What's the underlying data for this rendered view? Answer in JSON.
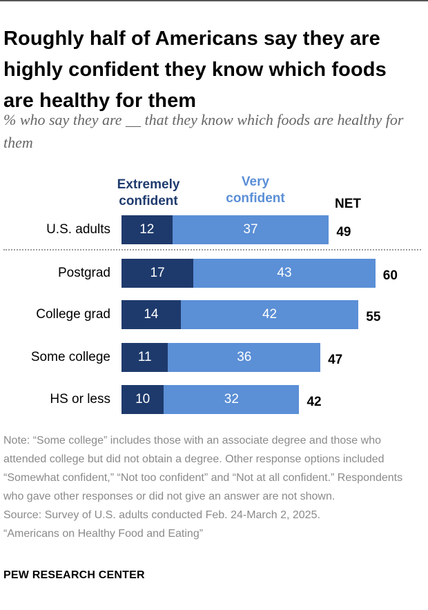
{
  "header": {
    "title": "Roughly half of Americans say they are highly confident they know which foods are healthy for them",
    "subtitle": "% who say they are __ that they know which foods are healthy for them"
  },
  "chart_data": {
    "type": "bar",
    "orientation": "horizontal",
    "stacked": true,
    "categories": [
      "U.S. adults",
      "Postgrad",
      "College grad",
      "Some college",
      "HS or less"
    ],
    "series": [
      {
        "name": "Extremely confident",
        "values": [
          12,
          17,
          14,
          11,
          10
        ],
        "color": "#1e3a6c"
      },
      {
        "name": "Very confident",
        "values": [
          37,
          43,
          42,
          36,
          32
        ],
        "color": "#5b8fd6"
      }
    ],
    "net": {
      "name": "NET",
      "values": [
        49,
        60,
        55,
        47,
        42
      ]
    },
    "legend": {
      "extremely_line1": "Extremely",
      "extremely_line2": "confident",
      "very_line1": "Very",
      "very_line2": "confident",
      "net": "NET"
    }
  },
  "footer": {
    "note": "Note: “Some college” includes those with an associate degree and those who attended college but did not obtain a degree. Other response options included “Somewhat confident,” “Not too confident” and “Not at all confident.” Respondents who gave other responses or did not give an answer are not shown.",
    "source": "Source: Survey of U.S. adults conducted Feb. 24-March 2, 2025.",
    "report": "“Americans on Healthy Food and Eating”",
    "brand": "PEW RESEARCH CENTER"
  }
}
